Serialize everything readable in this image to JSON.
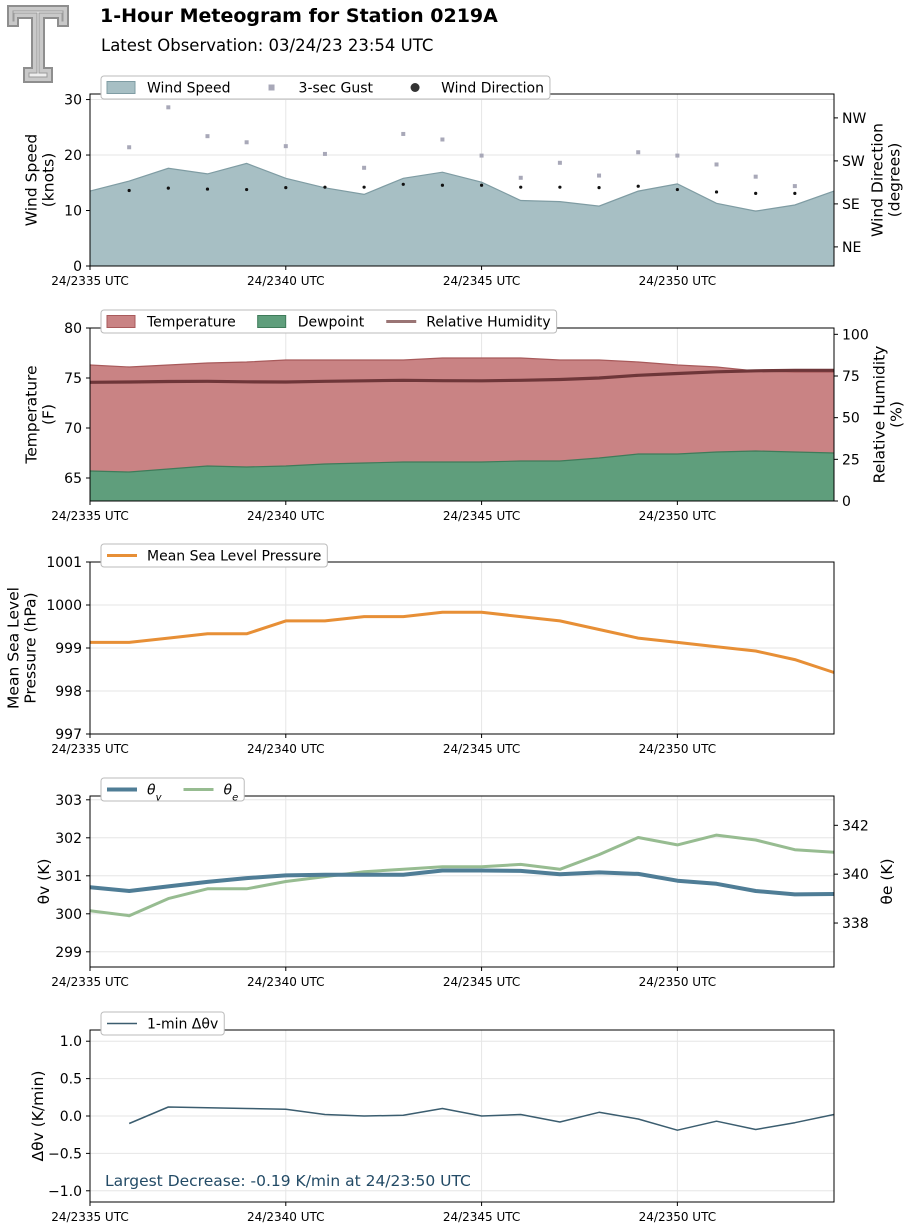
{
  "header": {
    "title": "1-Hour Meteogram for Station 0219A",
    "subtitle": "Latest Observation: 03/24/23 23:54 UTC"
  },
  "colors": {
    "wind_fill": "#a7bfc4",
    "wind_edge": "#7f9ca3",
    "gust": "#a8a8b8",
    "direction": "#111111",
    "temp_fill": "#c98384",
    "temp_edge": "#a85a5b",
    "dew_fill": "#5f9e7c",
    "dew_edge": "#3f7b5a",
    "rh_line": "#6e3639",
    "mslp_line": "#e78f36",
    "theta_v": "#4f7d96",
    "theta_e": "#97bc91",
    "dtheta": "#3b5d6f",
    "annotation": "#234b66"
  },
  "chart_data": [
    {
      "type": "area",
      "name": "wind",
      "x": [
        0,
        1,
        2,
        3,
        4,
        5,
        6,
        7,
        8,
        9,
        10,
        11,
        12,
        13,
        14,
        15,
        16,
        17,
        18,
        19
      ],
      "x_tick_values": [
        0,
        5,
        10,
        15
      ],
      "x_tick_labels": [
        "24/2335 UTC",
        "24/2340 UTC",
        "24/2345 UTC",
        "24/2350 UTC"
      ],
      "xlim": [
        0,
        19
      ],
      "ylabel": "Wind Speed\n(knots)",
      "ylim": [
        0,
        31
      ],
      "yticks": [
        0,
        10,
        20,
        30
      ],
      "y2label": "Wind Direction\n(degrees)",
      "y2lim": [
        5,
        365
      ],
      "y2ticks": [
        45,
        135,
        225,
        315
      ],
      "y2ticklabels": [
        "NE",
        "SE",
        "SW",
        "NW"
      ],
      "legend": [
        "Wind Speed",
        "3-sec Gust",
        "Wind Direction"
      ],
      "grid": true,
      "series": [
        {
          "name": "Wind Speed",
          "values": [
            13.5,
            15.3,
            17.6,
            16.6,
            18.5,
            15.8,
            14.1,
            12.9,
            15.8,
            16.9,
            15.1,
            11.8,
            11.6,
            10.8,
            13.5,
            14.8,
            11.3,
            9.9,
            11.0,
            13.5
          ]
        },
        {
          "name": "3-sec Gust",
          "values": [
            null,
            21.4,
            28.6,
            23.4,
            22.3,
            21.6,
            20.2,
            17.7,
            23.8,
            22.8,
            19.9,
            15.9,
            18.6,
            16.3,
            20.5,
            19.9,
            18.3,
            16.1,
            14.4,
            null
          ]
        },
        {
          "name": "Wind Direction",
          "values": [
            null,
            163,
            168,
            166,
            165,
            169,
            170,
            170,
            176,
            174,
            174,
            170,
            170,
            169,
            172,
            165,
            160,
            157,
            157,
            null
          ]
        }
      ]
    },
    {
      "type": "area",
      "name": "thermo",
      "x": [
        0,
        1,
        2,
        3,
        4,
        5,
        6,
        7,
        8,
        9,
        10,
        11,
        12,
        13,
        14,
        15,
        16,
        17,
        18,
        19
      ],
      "x_tick_values": [
        0,
        5,
        10,
        15
      ],
      "x_tick_labels": [
        "24/2335 UTC",
        "24/2340 UTC",
        "24/2345 UTC",
        "24/2350 UTC"
      ],
      "xlim": [
        0,
        19
      ],
      "ylabel": "Temperature\n(F)",
      "ylim": [
        62.7,
        80
      ],
      "yticks": [
        65,
        70,
        75,
        80
      ],
      "y2label": "Relative Humidity\n(%)",
      "y2lim": [
        0,
        103.8
      ],
      "y2ticks": [
        0,
        25,
        50,
        75,
        100
      ],
      "legend": [
        "Temperature",
        "Dewpoint",
        "Relative Humidity"
      ],
      "grid": true,
      "series": [
        {
          "name": "Temperature",
          "values": [
            76.3,
            76.1,
            76.3,
            76.5,
            76.6,
            76.8,
            76.8,
            76.8,
            76.8,
            77.0,
            77.0,
            77.0,
            76.8,
            76.8,
            76.6,
            76.3,
            76.1,
            75.7,
            75.6,
            75.6
          ]
        },
        {
          "name": "Dewpoint",
          "values": [
            65.7,
            65.6,
            65.9,
            66.2,
            66.1,
            66.2,
            66.4,
            66.5,
            66.6,
            66.6,
            66.6,
            66.7,
            66.7,
            67.0,
            67.4,
            67.4,
            67.6,
            67.7,
            67.6,
            67.5
          ]
        },
        {
          "name": "Relative Humidity",
          "values": [
            71.2,
            71.4,
            71.7,
            71.8,
            71.5,
            71.4,
            71.8,
            72.1,
            72.4,
            72.2,
            72.1,
            72.4,
            72.9,
            73.8,
            75.4,
            76.5,
            77.5,
            78.1,
            78.4,
            78.4
          ]
        }
      ]
    },
    {
      "type": "line",
      "name": "pressure",
      "x": [
        0,
        1,
        2,
        3,
        4,
        5,
        6,
        7,
        8,
        9,
        10,
        11,
        12,
        13,
        14,
        15,
        16,
        17,
        18,
        19
      ],
      "x_tick_values": [
        0,
        5,
        10,
        15
      ],
      "x_tick_labels": [
        "24/2335 UTC",
        "24/2340 UTC",
        "24/2345 UTC",
        "24/2350 UTC"
      ],
      "xlim": [
        0,
        19
      ],
      "ylabel": "Mean Sea Level\nPressure (hPa)",
      "ylim": [
        997,
        1001
      ],
      "yticks": [
        997,
        998,
        999,
        1000,
        1001
      ],
      "legend": [
        "Mean Sea Level Pressure"
      ],
      "grid": true,
      "series": [
        {
          "name": "Mean Sea Level Pressure",
          "values": [
            999.13,
            999.13,
            999.23,
            999.33,
            999.33,
            999.63,
            999.63,
            999.73,
            999.73,
            999.83,
            999.83,
            999.73,
            999.63,
            999.43,
            999.23,
            999.13,
            999.03,
            998.93,
            998.73,
            998.43
          ]
        }
      ]
    },
    {
      "type": "line",
      "name": "theta",
      "x": [
        0,
        1,
        2,
        3,
        4,
        5,
        6,
        7,
        8,
        9,
        10,
        11,
        12,
        13,
        14,
        15,
        16,
        17,
        18,
        19
      ],
      "x_tick_values": [
        0,
        5,
        10,
        15
      ],
      "x_tick_labels": [
        "24/2335 UTC",
        "24/2340 UTC",
        "24/2345 UTC",
        "24/2350 UTC"
      ],
      "xlim": [
        0,
        19
      ],
      "ylabel": "θv (K)",
      "ylim": [
        298.6,
        303.1
      ],
      "yticks": [
        299,
        300,
        301,
        302,
        303
      ],
      "y2label": "θe (K)",
      "y2lim": [
        336.2,
        343.2
      ],
      "y2ticks": [
        338,
        340,
        342
      ],
      "legend": [
        "θv",
        "θe"
      ],
      "grid": true,
      "series": [
        {
          "name": "θv",
          "values": [
            300.7,
            300.6,
            300.72,
            300.84,
            300.94,
            301.01,
            301.03,
            301.03,
            301.03,
            301.14,
            301.14,
            301.13,
            301.04,
            301.09,
            301.05,
            300.87,
            300.79,
            300.6,
            300.51,
            300.52
          ]
        },
        {
          "name": "θe",
          "values": [
            338.5,
            338.3,
            339.0,
            339.4,
            339.4,
            339.7,
            339.9,
            340.1,
            340.2,
            340.3,
            340.3,
            340.4,
            340.2,
            340.8,
            341.5,
            341.2,
            341.6,
            341.4,
            341.0,
            340.9
          ]
        }
      ]
    },
    {
      "type": "line",
      "name": "dtheta",
      "x": [
        0,
        1,
        2,
        3,
        4,
        5,
        6,
        7,
        8,
        9,
        10,
        11,
        12,
        13,
        14,
        15,
        16,
        17,
        18,
        19
      ],
      "x_tick_values": [
        0,
        5,
        10,
        15
      ],
      "x_tick_labels": [
        "24/2335 UTC",
        "24/2340 UTC",
        "24/2345 UTC",
        "24/2350 UTC"
      ],
      "xlim": [
        0,
        19
      ],
      "ylabel": "Δθv (K/min)",
      "ylim": [
        -1.15,
        1.15
      ],
      "yticks": [
        -1.0,
        -0.5,
        0.0,
        0.5,
        1.0
      ],
      "yticklabels": [
        "−1.0",
        "−0.5",
        "0.0",
        "0.5",
        "1.0"
      ],
      "legend": [
        "1-min Δθv"
      ],
      "grid": true,
      "annotation": "Largest Decrease: -0.19 K/min at 24/23:50 UTC",
      "series": [
        {
          "name": "1-min Δθv",
          "values": [
            null,
            -0.1,
            0.12,
            0.11,
            0.1,
            0.09,
            0.02,
            0.0,
            0.01,
            0.1,
            0.0,
            0.02,
            -0.08,
            0.05,
            -0.04,
            -0.19,
            -0.07,
            -0.18,
            -0.09,
            0.02
          ]
        }
      ]
    }
  ]
}
